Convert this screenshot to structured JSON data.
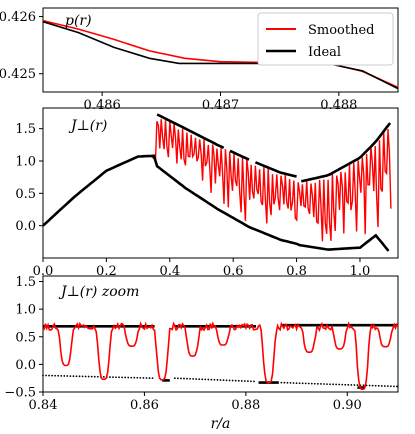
{
  "chart_data": [
    {
      "type": "line",
      "panel_label": "p(r)",
      "xlim": [
        0.4855,
        0.4885
      ],
      "ylim": [
        0.42468,
        0.42615
      ],
      "xticks": [
        0.486,
        0.487,
        0.488
      ],
      "xtick_labels": [
        "0.486",
        "0.487",
        "0.488"
      ],
      "yticks": [
        0.425,
        0.426
      ],
      "ytick_labels": [
        "0.425",
        "0.426"
      ],
      "legend_position": "top-right",
      "series": [
        {
          "name": "Smoothed",
          "color": "#ff0000",
          "x": [
            0.4855,
            0.4858,
            0.4861,
            0.4864,
            0.4867,
            0.487,
            0.4873,
            0.4876,
            0.4879,
            0.4882,
            0.4885
          ],
          "y": [
            0.42593,
            0.42578,
            0.4256,
            0.4254,
            0.42527,
            0.42521,
            0.4252,
            0.42521,
            0.42519,
            0.42504,
            0.42476
          ]
        },
        {
          "name": "Ideal",
          "color": "#000000",
          "x": [
            0.4855,
            0.4858,
            0.4861,
            0.4864,
            0.48665,
            0.487,
            0.4873,
            0.4876,
            0.4879,
            0.4882,
            0.4885
          ],
          "y": [
            0.42591,
            0.42572,
            0.42546,
            0.42527,
            0.42518,
            0.42518,
            0.42518,
            0.42518,
            0.42518,
            0.42505,
            0.42474
          ]
        }
      ]
    },
    {
      "type": "line",
      "panel_label": "J_⊥(r)",
      "xlim": [
        0.0,
        1.12
      ],
      "ylim": [
        -0.5,
        1.82
      ],
      "xticks": [
        0.0,
        0.2,
        0.4,
        0.6,
        0.8,
        1.0
      ],
      "xtick_labels": [
        "0.0",
        "0.2",
        "0.4",
        "0.6",
        "0.8",
        "1.0"
      ],
      "yticks": [
        0.0,
        0.5,
        1.0,
        1.5
      ],
      "ytick_labels": [
        "0.0",
        "0.5",
        "1.0",
        "1.5"
      ],
      "series": [
        {
          "name": "Smoothed",
          "color": "#ff0000",
          "x": [
            0.0,
            0.1,
            0.2,
            0.3,
            0.35,
            0.36,
            0.45,
            0.55,
            0.65,
            0.75,
            0.8,
            0.81,
            0.9,
            1.0,
            1.05,
            1.1
          ],
          "y": [
            0.0,
            0.45,
            0.85,
            1.07,
            1.08,
            1.7,
            1.5,
            1.25,
            1.02,
            0.82,
            0.76,
            0.7,
            0.78,
            1.05,
            1.3,
            1.65
          ],
          "lower_envelope_y": [
            0.0,
            0.45,
            0.85,
            1.07,
            1.08,
            0.92,
            0.58,
            0.26,
            -0.02,
            -0.22,
            -0.28,
            -0.3,
            -0.37,
            -0.34,
            -0.1,
            -0.4
          ]
        },
        {
          "name": "Ideal",
          "color": "#000000",
          "x": [
            0.0,
            0.1,
            0.2,
            0.3,
            0.35,
            0.36,
            0.45,
            0.55,
            0.65,
            0.75,
            0.8,
            0.81,
            0.9,
            1.0,
            1.05,
            1.1
          ],
          "y": [
            0.0,
            0.45,
            0.85,
            1.07,
            1.08,
            1.72,
            1.5,
            1.25,
            1.02,
            0.82,
            0.76,
            0.68,
            0.78,
            1.05,
            1.3,
            1.62
          ],
          "lower_branch_y": [
            0.0,
            0.45,
            0.85,
            1.07,
            1.08,
            0.92,
            0.58,
            0.26,
            -0.02,
            -0.22,
            -0.28,
            -0.3,
            -0.37,
            -0.34,
            -0.15,
            -0.45
          ]
        }
      ]
    },
    {
      "type": "line",
      "panel_label": "J_⊥(r) zoom",
      "xlabel": "r/a",
      "xlim": [
        0.84,
        0.91
      ],
      "ylim": [
        -0.5,
        1.6
      ],
      "xticks": [
        0.84,
        0.86,
        0.88,
        0.9
      ],
      "xtick_labels": [
        "0.84",
        "0.86",
        "0.88",
        "0.90"
      ],
      "yticks": [
        -0.5,
        0.0,
        0.5,
        1.0,
        1.5
      ],
      "ytick_labels": [
        "−0.5",
        "0.0",
        "0.5",
        "1.0",
        "1.5"
      ],
      "series": [
        {
          "name": "Smoothed",
          "color": "#ff0000",
          "dips": [
            [
              0.8445,
              -0.02
            ],
            [
              0.852,
              -0.27
            ],
            [
              0.8575,
              0.33
            ],
            [
              0.8635,
              -0.28
            ],
            [
              0.8695,
              0.15
            ],
            [
              0.8755,
              0.35
            ],
            [
              0.8845,
              -0.33
            ],
            [
              0.8925,
              0.22
            ],
            [
              0.8985,
              0.28
            ],
            [
              0.903,
              -0.45
            ],
            [
              0.9075,
              0.32
            ]
          ],
          "baseline": 0.68
        },
        {
          "name": "Ideal",
          "color": "#000000",
          "upper_segments": [
            [
              0.84,
              0.862,
              0.69
            ],
            [
              0.866,
              0.882,
              0.69
            ],
            [
              0.887,
              0.91,
              0.71
            ]
          ],
          "lower_segments": [
            [
              0.8635,
              0.865,
              -0.29
            ],
            [
              0.8825,
              0.8865,
              -0.33
            ],
            [
              0.902,
              0.9035,
              -0.42
            ]
          ],
          "lower_dots_range": [
            [
              0.84,
              0.862,
              -0.2,
              -0.25
            ],
            [
              0.866,
              0.882,
              -0.25,
              -0.31
            ],
            [
              0.887,
              0.91,
              -0.33,
              -0.4
            ]
          ]
        }
      ]
    }
  ],
  "labels": {
    "p1": "p(r)",
    "p2": "J⊥(r)",
    "p3": "J⊥(r) zoom",
    "xlabel": "r/a",
    "legend_smoothed": "Smoothed",
    "legend_ideal": "Ideal"
  },
  "colors": {
    "smoothed": "#ff0000",
    "ideal": "#000000"
  }
}
